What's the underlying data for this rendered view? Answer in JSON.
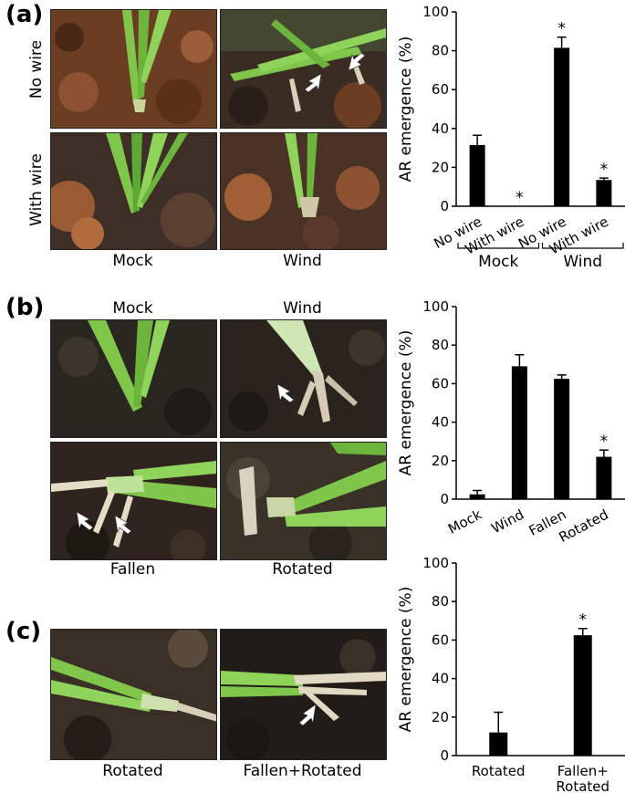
{
  "panels": {
    "a": {
      "label": "(a)",
      "row_labels": [
        "No wire",
        "With wire"
      ],
      "col_labels": [
        "Mock",
        "Wind"
      ]
    },
    "b": {
      "label": "(b)",
      "top_labels": [
        "Mock",
        "Wind"
      ],
      "bottom_labels": [
        "Fallen",
        "Rotated"
      ]
    },
    "c": {
      "label": "(c)",
      "bottom_labels": [
        "Rotated",
        "Fallen+Rotated"
      ]
    }
  },
  "icons": {
    "arrow": "white-arrow-icon"
  },
  "colors": {
    "bar": "#000000",
    "soil_dark": "#2b2119",
    "soil_red": "#8a4a2a",
    "stem": "#5fbf3a"
  },
  "chart_data": [
    {
      "type": "bar",
      "ylabel": "AR emergence (%)",
      "ylim": [
        0,
        100
      ],
      "yticks": [
        0,
        20,
        40,
        60,
        80,
        100
      ],
      "categories": [
        "No wire",
        "With wire",
        "No wire",
        "With wire"
      ],
      "groups": [
        {
          "name": "Mock",
          "span": [
            0,
            1
          ]
        },
        {
          "name": "Wind",
          "span": [
            2,
            3
          ]
        }
      ],
      "values": [
        31.5,
        0,
        81.5,
        13.5
      ],
      "errors": [
        5,
        0,
        5.5,
        1
      ],
      "significance": [
        "",
        "*",
        "*",
        "*"
      ]
    },
    {
      "type": "bar",
      "ylabel": "AR emergence (%)",
      "ylim": [
        0,
        100
      ],
      "yticks": [
        0,
        20,
        40,
        60,
        80,
        100
      ],
      "categories": [
        "Mock",
        "Wind",
        "Fallen",
        "Rotated"
      ],
      "values": [
        2.5,
        69,
        62.5,
        22
      ],
      "errors": [
        2,
        6,
        2,
        3.5
      ],
      "significance": [
        "",
        "",
        "",
        "*"
      ]
    },
    {
      "type": "bar",
      "ylabel": "AR emergence (%)",
      "ylim": [
        0,
        100
      ],
      "yticks": [
        0,
        20,
        40,
        60,
        80,
        100
      ],
      "categories": [
        "Rotated",
        "Fallen+\nRotated"
      ],
      "category_lines": [
        [
          "Rotated"
        ],
        [
          "Fallen+",
          "Rotated"
        ]
      ],
      "values": [
        12,
        62.5
      ],
      "errors": [
        10.5,
        3.5
      ],
      "significance": [
        "",
        "*"
      ]
    }
  ]
}
